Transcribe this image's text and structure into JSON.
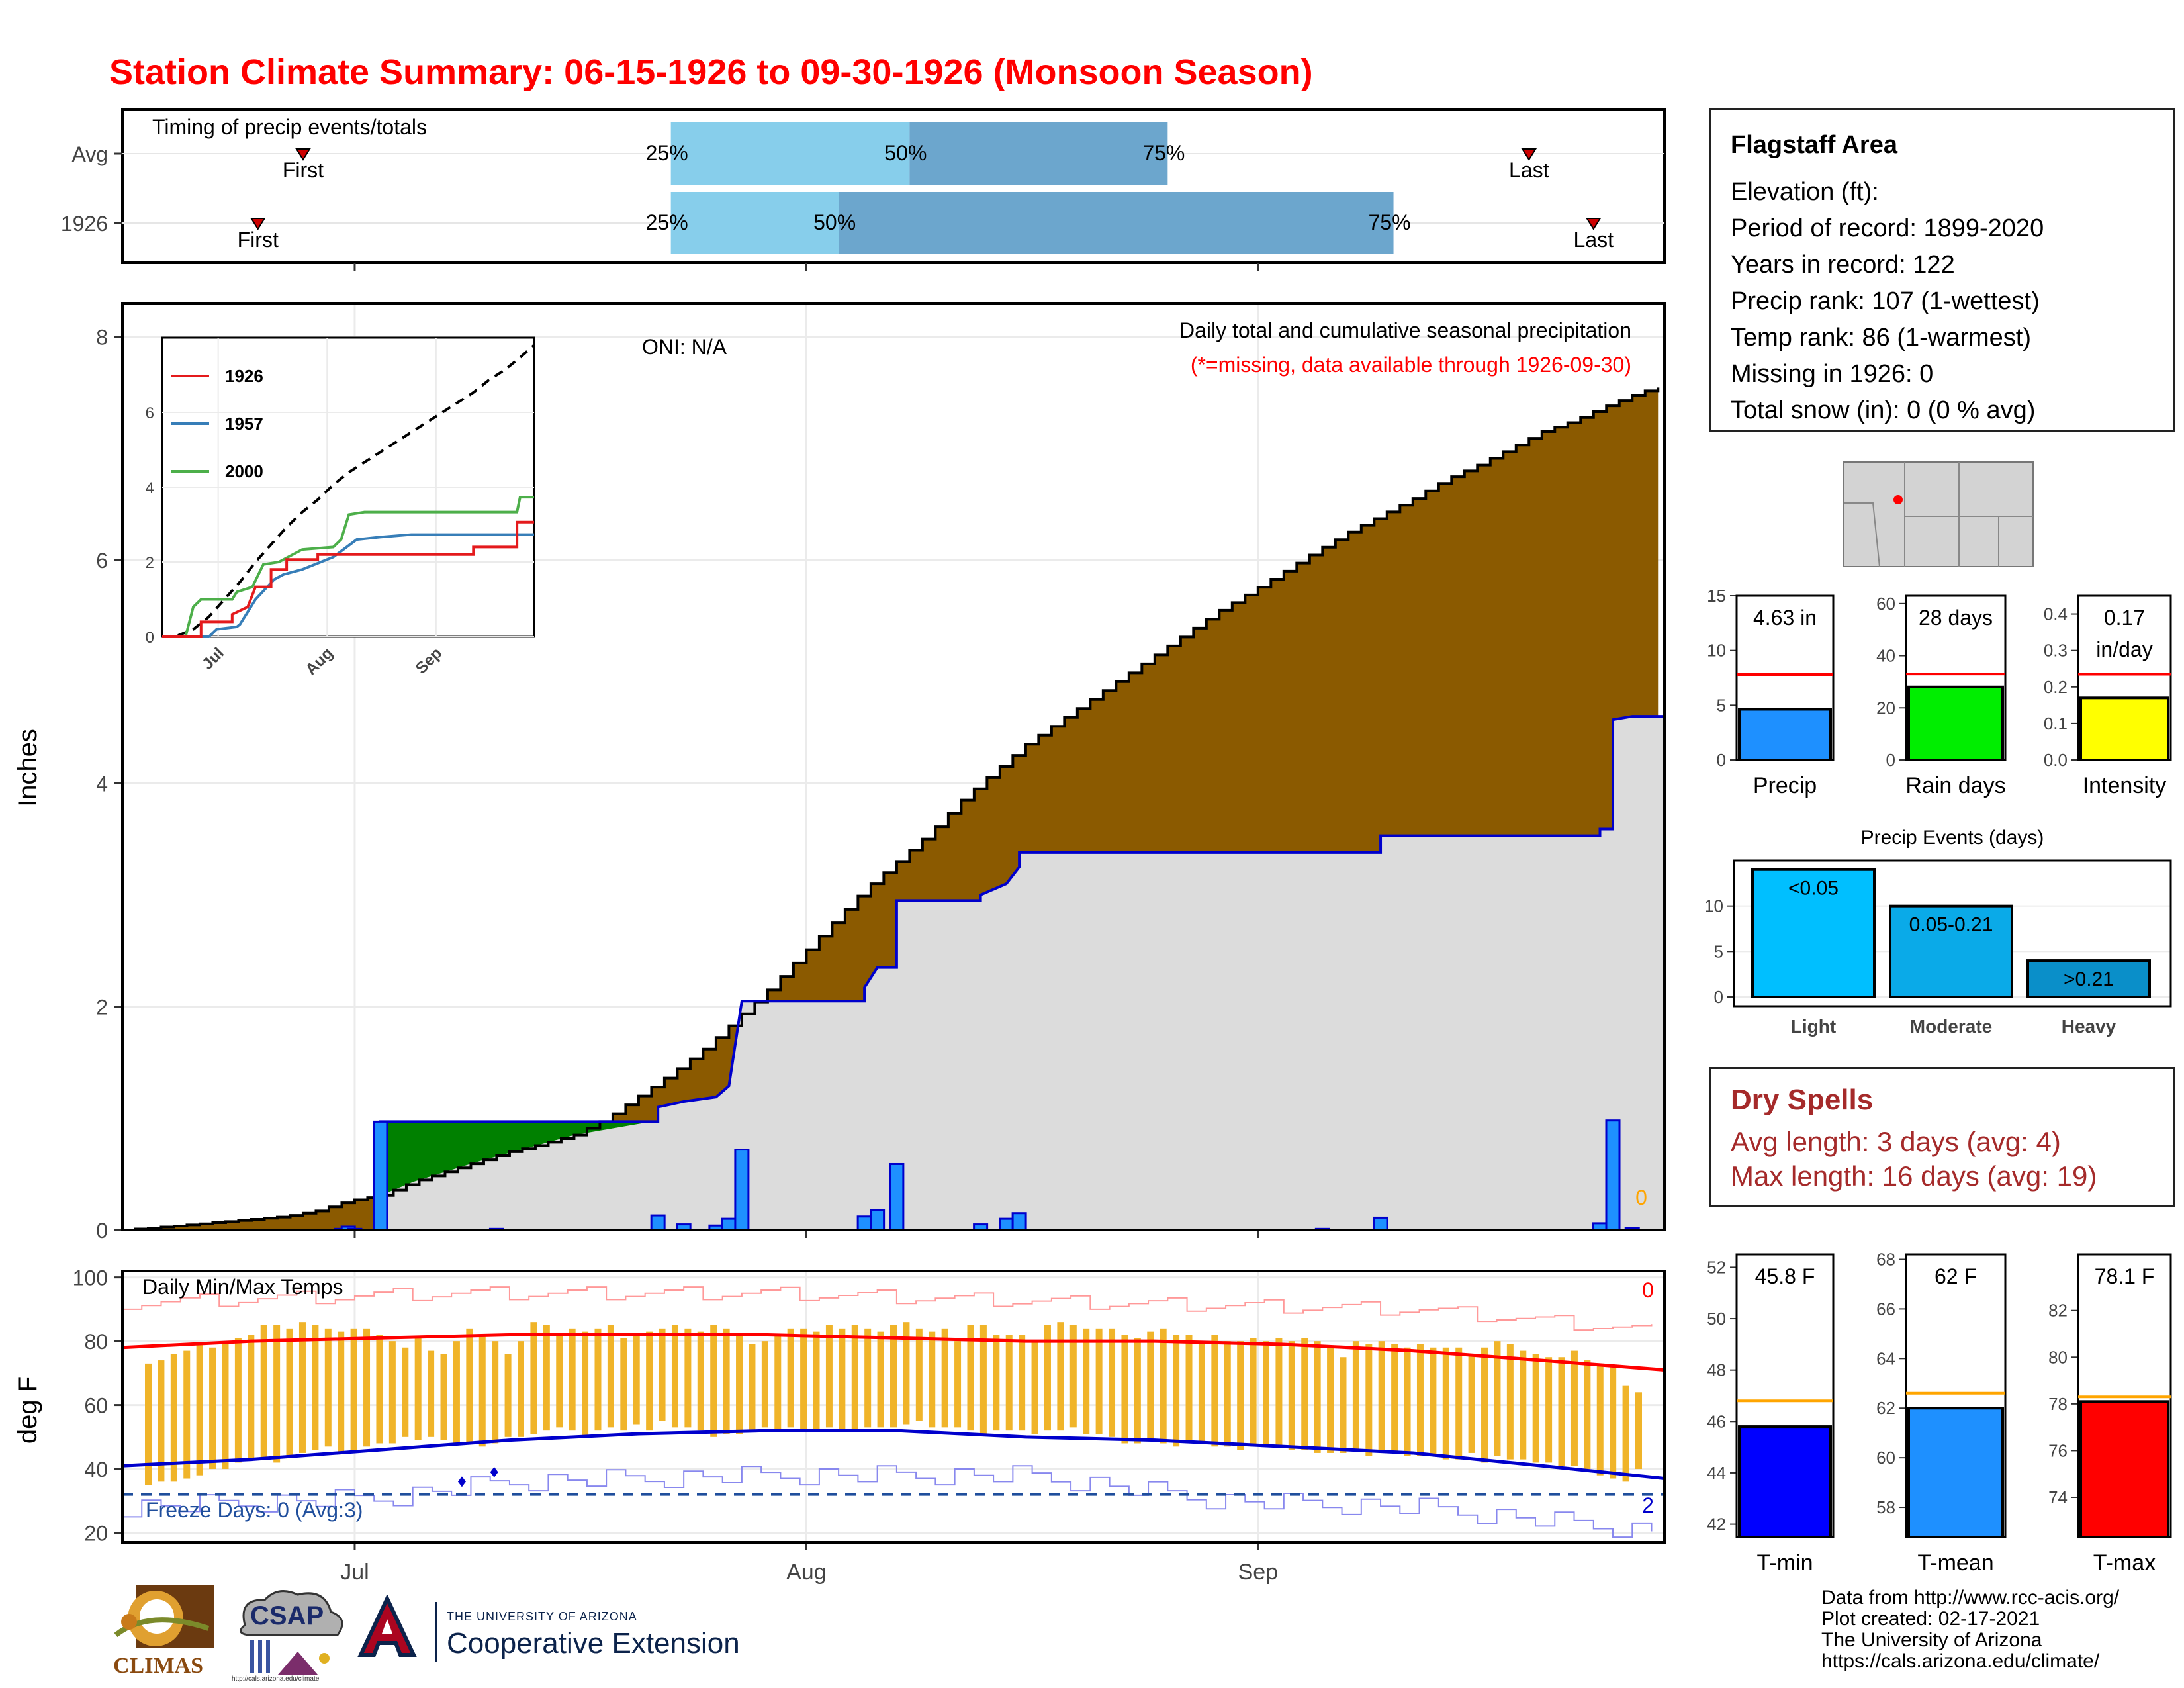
{
  "title": "Station Climate Summary: 06-15-1926 to 09-30-1926 (Monsoon Season)",
  "colors": {
    "title": "#ff0000",
    "cum_current": "#8b5a00",
    "cum_gain": "#008000",
    "cum_avg_fill": "#dcdcdc",
    "avg_line": "#0000cc",
    "bar": "#1e90ff",
    "temp_bar": "#f0b429",
    "tmax_avg": "#ff0000",
    "tmin_avg": "#0000cc",
    "dry": "#a52a2a"
  },
  "timing": {
    "label": "Timing of precip events/totals",
    "rows": [
      {
        "name": "Avg",
        "first_day": 28,
        "p25": 85,
        "p50": 122,
        "p75": 162,
        "last_day": 218
      },
      {
        "name": "1926",
        "first_day": 21,
        "p25": 85,
        "p50": 111,
        "p75": 197,
        "last_day": 228
      }
    ],
    "labels": {
      "first": "First",
      "last": "Last",
      "p25": "25%",
      "p50": "50%",
      "p75": "75%"
    }
  },
  "x_axis": {
    "ticks": [
      {
        "day": 36,
        "label": "Jul"
      },
      {
        "day": 106,
        "label": "Aug"
      },
      {
        "day": 176,
        "label": "Sep"
      }
    ]
  },
  "precip_panel": {
    "ylabel": "Inches",
    "ylim": [
      0,
      8.3
    ],
    "yticks": [
      0,
      2,
      4,
      6,
      8
    ],
    "oni": "ONI: N/A",
    "subtitle": "Daily total and cumulative seasonal precipitation",
    "missing_note": "(*=missing, data available through 1926-09-30)",
    "missing_count": "0"
  },
  "inset": {
    "series": [
      {
        "name": "1926",
        "color": "#e41a1c"
      },
      {
        "name": "1957",
        "color": "#377eb8"
      },
      {
        "name": "2000",
        "color": "#4daf4a"
      }
    ],
    "xticks": [
      "Jul",
      "Aug",
      "Sep"
    ],
    "yticks": [
      "0",
      "2",
      "4",
      "6"
    ]
  },
  "temp_panel": {
    "ylabel": "deg F",
    "ylim": [
      17,
      102
    ],
    "yticks": [
      20,
      40,
      60,
      80,
      100
    ],
    "label": "Daily Min/Max Temps",
    "freeze": "Freeze Days: 0 (Avg:3)",
    "freeze_line": 32,
    "count_top": "0",
    "count_bottom": "2"
  },
  "station": {
    "name": "Flagstaff Area",
    "elevation": "Elevation (ft):",
    "period": "Period of record: 1899-2020",
    "years": "Years in record: 122",
    "precip_rank": "Precip rank: 107 (1-wettest)",
    "temp_rank": "Temp rank: 86 (1-warmest)",
    "missing": "Missing in 1926: 0",
    "snow": "Total snow (in): 0 (0 % avg)"
  },
  "minibars": [
    {
      "label": "Precip",
      "value": 4.63,
      "avg": 7.8,
      "text": "4.63 in",
      "ylim": [
        0,
        15
      ],
      "yticks": [
        "0",
        "5",
        "10",
        "15"
      ],
      "color": "#1e90ff"
    },
    {
      "label": "Rain days",
      "value": 28,
      "avg": 33,
      "text": "28 days",
      "ylim": [
        0,
        63
      ],
      "yticks": [
        "0",
        "20",
        "40",
        "60"
      ],
      "color": "#00ee00"
    },
    {
      "label": "Intensity",
      "value": 0.17,
      "avg": 0.235,
      "text": "0.17",
      "text2": "in/day",
      "ylim": [
        0,
        0.45
      ],
      "yticks": [
        "0.0",
        "0.1",
        "0.2",
        "0.3",
        "0.4"
      ],
      "color": "#ffff00"
    }
  ],
  "events": {
    "title": "Precip Events (days)",
    "yticks": [
      "0",
      "5",
      "10"
    ],
    "bars": [
      {
        "cat": "Light",
        "value": 14,
        "text": "<0.05",
        "color": "#00bfff"
      },
      {
        "cat": "Moderate",
        "value": 10,
        "text": "0.05-0.21",
        "color": "#0aaae8"
      },
      {
        "cat": "Heavy",
        "value": 4,
        "text": ">0.21",
        "color": "#0a8fc9"
      }
    ]
  },
  "dry_spells": {
    "title": "Dry Spells",
    "avg": "Avg length: 3 days (avg: 4)",
    "max": "Max length: 16 days (avg: 19)"
  },
  "tempbars": [
    {
      "label": "T-min",
      "value": 45.8,
      "avg": 46.8,
      "text": "45.8 F",
      "ylim": [
        41.5,
        52.5
      ],
      "yticks": [
        "42",
        "44",
        "46",
        "48",
        "50",
        "52"
      ],
      "color": "#0000ff"
    },
    {
      "label": "T-mean",
      "value": 62,
      "avg": 62.6,
      "text": "62 F",
      "ylim": [
        56.8,
        68.2
      ],
      "yticks": [
        "58",
        "60",
        "62",
        "64",
        "66",
        "68"
      ],
      "color": "#1e90ff"
    },
    {
      "label": "T-max",
      "value": 78.1,
      "avg": 78.3,
      "text": "78.1 F",
      "ylim": [
        72.3,
        84.4
      ],
      "yticks": [
        "74",
        "76",
        "78",
        "80",
        "82"
      ],
      "color": "#ff0000"
    }
  ],
  "credits": [
    "Data from http://www.rcc-acis.org/",
    "Plot created: 02-17-2021",
    "The University of Arizona",
    "https://cals.arizona.edu/climate/"
  ],
  "logos": {
    "climas": "CLIMAS",
    "csap": "CSAP",
    "ua_small": "THE UNIVERSITY OF ARIZONA",
    "ua_big": "Cooperative Extension",
    "csap_url": "http://cals.arizona.edu/climate"
  },
  "series": {
    "daily_precip": [
      [
        34,
        0.01
      ],
      [
        35,
        0.03
      ],
      [
        36,
        0.01
      ],
      [
        40,
        0.97
      ],
      [
        58,
        0.01
      ],
      [
        83,
        0.13
      ],
      [
        87,
        0.05
      ],
      [
        92,
        0.04
      ],
      [
        94,
        0.1
      ],
      [
        96,
        0.72
      ],
      [
        115,
        0.12
      ],
      [
        117,
        0.18
      ],
      [
        120,
        0.59
      ],
      [
        133,
        0.05
      ],
      [
        137,
        0.1
      ],
      [
        139,
        0.15
      ],
      [
        186,
        0.01
      ],
      [
        195,
        0.11
      ],
      [
        229,
        0.06
      ],
      [
        231,
        0.98
      ],
      [
        234,
        0.02
      ]
    ],
    "cum_avg": [
      [
        0,
        0
      ],
      [
        9,
        0.04
      ],
      [
        17,
        0.08
      ],
      [
        25,
        0.12
      ],
      [
        30,
        0.17
      ],
      [
        35,
        0.26
      ],
      [
        40,
        0.31
      ],
      [
        45,
        0.43
      ],
      [
        50,
        0.52
      ],
      [
        55,
        0.61
      ],
      [
        60,
        0.7
      ],
      [
        65,
        0.77
      ],
      [
        70,
        0.85
      ],
      [
        75,
        1.0
      ],
      [
        80,
        1.2
      ],
      [
        85,
        1.4
      ],
      [
        90,
        1.62
      ],
      [
        95,
        1.88
      ],
      [
        100,
        2.15
      ],
      [
        105,
        2.45
      ],
      [
        110,
        2.75
      ],
      [
        115,
        3.05
      ],
      [
        120,
        3.3
      ],
      [
        125,
        3.55
      ],
      [
        130,
        3.85
      ],
      [
        135,
        4.1
      ],
      [
        140,
        4.35
      ],
      [
        145,
        4.55
      ],
      [
        150,
        4.75
      ],
      [
        155,
        4.95
      ],
      [
        160,
        5.15
      ],
      [
        165,
        5.35
      ],
      [
        170,
        5.55
      ],
      [
        175,
        5.72
      ],
      [
        180,
        5.9
      ],
      [
        185,
        6.08
      ],
      [
        190,
        6.25
      ],
      [
        195,
        6.4
      ],
      [
        200,
        6.55
      ],
      [
        205,
        6.72
      ],
      [
        210,
        6.85
      ],
      [
        215,
        7.0
      ],
      [
        220,
        7.15
      ],
      [
        225,
        7.25
      ],
      [
        230,
        7.38
      ],
      [
        235,
        7.5
      ],
      [
        239,
        7.56
      ]
    ],
    "cum_1926": [
      [
        0,
        0
      ],
      [
        40,
        0
      ],
      [
        40,
        0.97
      ],
      [
        83,
        0.97
      ],
      [
        83,
        1.1
      ],
      [
        87,
        1.15
      ],
      [
        92,
        1.19
      ],
      [
        94,
        1.29
      ],
      [
        96,
        2.05
      ],
      [
        115,
        2.05
      ],
      [
        115,
        2.17
      ],
      [
        117,
        2.35
      ],
      [
        120,
        2.35
      ],
      [
        120,
        2.95
      ],
      [
        133,
        2.95
      ],
      [
        133,
        3.0
      ],
      [
        137,
        3.1
      ],
      [
        139,
        3.25
      ],
      [
        139,
        3.38
      ],
      [
        186,
        3.38
      ],
      [
        195,
        3.38
      ],
      [
        195,
        3.53
      ],
      [
        229,
        3.53
      ],
      [
        229,
        3.59
      ],
      [
        231,
        3.59
      ],
      [
        231,
        4.57
      ],
      [
        234,
        4.6
      ],
      [
        239,
        4.6
      ]
    ],
    "inset_avg": [
      [
        0,
        0
      ],
      [
        10,
        0.05
      ],
      [
        20,
        0.3
      ],
      [
        30,
        0.8
      ],
      [
        40,
        1.5
      ],
      [
        50,
        2.2
      ],
      [
        60,
        3.0
      ],
      [
        70,
        3.7
      ],
      [
        80,
        4.4
      ],
      [
        90,
        5.0
      ],
      [
        100,
        5.5
      ],
      [
        110,
        6.1
      ],
      [
        120,
        6.6
      ],
      [
        130,
        7.0
      ],
      [
        140,
        7.4
      ],
      [
        150,
        7.8
      ],
      [
        160,
        8.2
      ],
      [
        170,
        8.6
      ],
      [
        180,
        9.0
      ],
      [
        190,
        9.4
      ],
      [
        200,
        9.8
      ],
      [
        210,
        10.3
      ],
      [
        220,
        10.7
      ],
      [
        230,
        11.2
      ],
      [
        239,
        11.7
      ]
    ],
    "inset_1926": [
      [
        0,
        0
      ],
      [
        25,
        0
      ],
      [
        25,
        0.6
      ],
      [
        45,
        0.6
      ],
      [
        45,
        0.9
      ],
      [
        55,
        1.2
      ],
      [
        60,
        2.0
      ],
      [
        70,
        2.0
      ],
      [
        70,
        2.7
      ],
      [
        80,
        2.7
      ],
      [
        80,
        3.1
      ],
      [
        100,
        3.1
      ],
      [
        100,
        3.3
      ],
      [
        150,
        3.3
      ],
      [
        200,
        3.3
      ],
      [
        200,
        3.6
      ],
      [
        228,
        3.6
      ],
      [
        228,
        4.6
      ],
      [
        239,
        4.6
      ]
    ],
    "inset_1957": [
      [
        0,
        0
      ],
      [
        30,
        0
      ],
      [
        35,
        0.3
      ],
      [
        48,
        0.4
      ],
      [
        50,
        0.5
      ],
      [
        60,
        1.5
      ],
      [
        72,
        2.3
      ],
      [
        78,
        2.5
      ],
      [
        90,
        2.7
      ],
      [
        110,
        3.2
      ],
      [
        125,
        3.9
      ],
      [
        140,
        4.0
      ],
      [
        160,
        4.1
      ],
      [
        239,
        4.1
      ]
    ],
    "inset_2000": [
      [
        0,
        0
      ],
      [
        15,
        0
      ],
      [
        20,
        1.2
      ],
      [
        25,
        1.5
      ],
      [
        45,
        1.5
      ],
      [
        48,
        1.8
      ],
      [
        58,
        2.0
      ],
      [
        65,
        2.9
      ],
      [
        75,
        3.0
      ],
      [
        90,
        3.5
      ],
      [
        110,
        3.6
      ],
      [
        115,
        3.9
      ],
      [
        120,
        4.9
      ],
      [
        130,
        5.0
      ],
      [
        150,
        5.0
      ],
      [
        200,
        5.0
      ],
      [
        228,
        5.0
      ],
      [
        230,
        5.6
      ],
      [
        239,
        5.6
      ]
    ],
    "tmax_avg": [
      [
        0,
        78
      ],
      [
        20,
        80
      ],
      [
        40,
        81
      ],
      [
        60,
        82
      ],
      [
        80,
        82
      ],
      [
        100,
        82
      ],
      [
        120,
        81
      ],
      [
        140,
        80
      ],
      [
        160,
        80
      ],
      [
        180,
        79
      ],
      [
        200,
        77
      ],
      [
        220,
        74
      ],
      [
        239,
        71
      ]
    ],
    "tmin_avg": [
      [
        0,
        41
      ],
      [
        20,
        43
      ],
      [
        40,
        46
      ],
      [
        60,
        49
      ],
      [
        80,
        51
      ],
      [
        100,
        52
      ],
      [
        120,
        52
      ],
      [
        140,
        50
      ],
      [
        160,
        49
      ],
      [
        180,
        47
      ],
      [
        200,
        45
      ],
      [
        220,
        41
      ],
      [
        239,
        37
      ]
    ],
    "tmax_record": [
      [
        0,
        92
      ],
      [
        50,
        95
      ],
      [
        100,
        95
      ],
      [
        150,
        92
      ],
      [
        200,
        90
      ],
      [
        239,
        83
      ]
    ],
    "tmin_record": [
      [
        0,
        28
      ],
      [
        40,
        31
      ],
      [
        60,
        36
      ],
      [
        100,
        38
      ],
      [
        140,
        38
      ],
      [
        170,
        30
      ],
      [
        200,
        28
      ],
      [
        239,
        20
      ]
    ],
    "temp_bars_min": [
      35,
      36,
      36,
      37,
      38,
      40,
      40,
      42,
      43,
      43,
      42,
      44,
      45,
      46,
      47,
      45,
      46,
      47,
      48,
      48,
      50,
      49,
      50,
      49,
      48,
      48,
      47,
      48,
      50,
      50,
      51,
      52,
      53,
      52,
      50,
      52,
      53,
      52,
      54,
      52,
      55,
      53,
      53,
      52,
      50,
      51,
      51,
      52,
      53,
      52,
      53,
      52,
      52,
      53,
      52,
      52,
      53,
      53,
      53,
      54,
      55,
      53,
      53,
      53,
      52,
      51,
      52,
      52,
      52,
      51,
      52,
      52,
      53,
      51,
      51,
      50,
      48,
      48,
      49,
      48,
      47,
      48,
      48,
      47,
      47,
      46,
      47,
      47,
      47,
      46,
      46,
      45,
      45,
      45,
      46,
      44,
      45,
      45,
      44,
      44,
      44,
      43,
      43,
      45,
      42,
      44,
      43,
      43,
      42,
      42,
      41,
      41,
      40,
      38,
      37,
      36,
      40
    ],
    "temp_bars_max": [
      73,
      74,
      76,
      77,
      79,
      78,
      80,
      81,
      82,
      85,
      85,
      84,
      86,
      85,
      84,
      83,
      84,
      84,
      82,
      80,
      78,
      81,
      77,
      76,
      80,
      84,
      82,
      80,
      76,
      80,
      86,
      85,
      82,
      84,
      83,
      84,
      85,
      81,
      82,
      83,
      84,
      85,
      84,
      83,
      85,
      84,
      82,
      79,
      80,
      82,
      84,
      84,
      83,
      85,
      84,
      85,
      84,
      83,
      85,
      86,
      84,
      83,
      84,
      80,
      85,
      85,
      82,
      82,
      82,
      80,
      85,
      86,
      85,
      84,
      84,
      84,
      82,
      81,
      83,
      84,
      82,
      82,
      80,
      82,
      80,
      80,
      81,
      80,
      81,
      80,
      81,
      80,
      78,
      75,
      80,
      79,
      80,
      79,
      78,
      79,
      78,
      78,
      78,
      76,
      78,
      80,
      79,
      77,
      76,
      75,
      75,
      77,
      74,
      73,
      72,
      66,
      64
    ]
  }
}
